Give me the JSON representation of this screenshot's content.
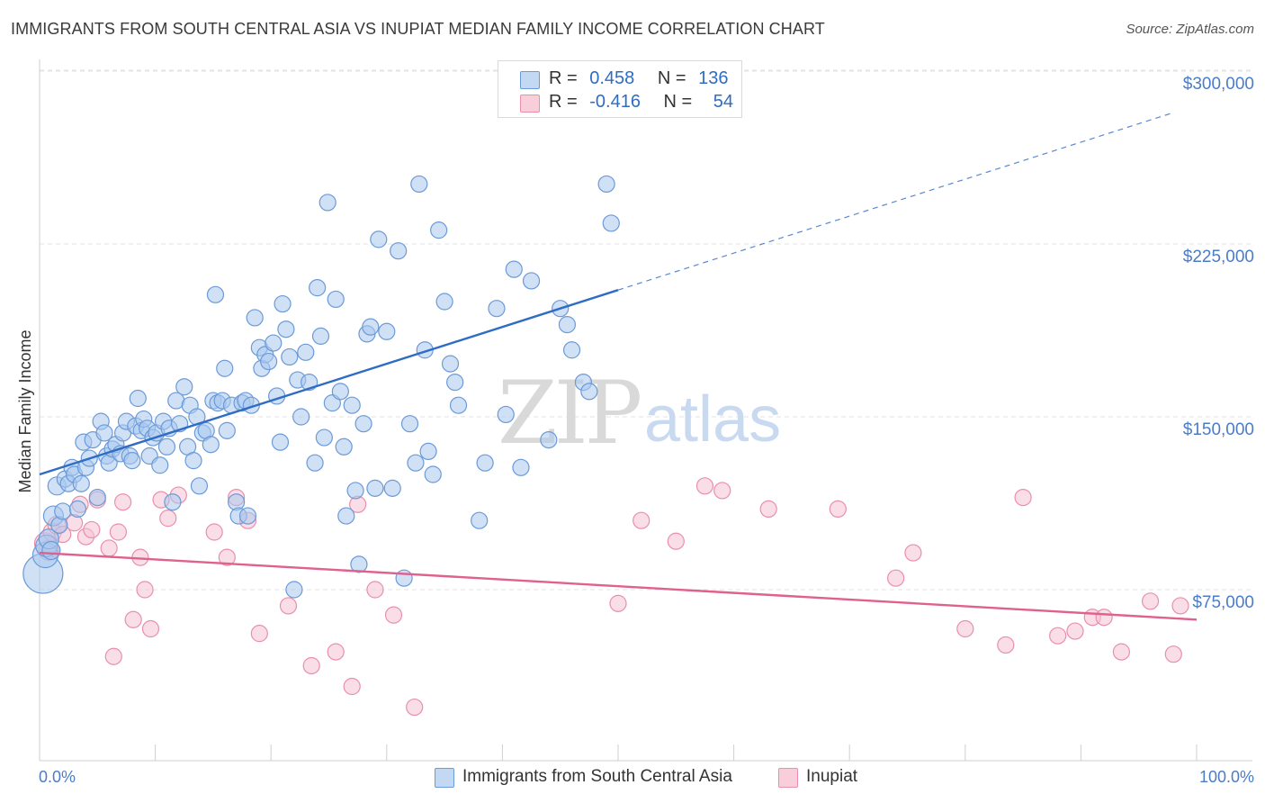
{
  "title": "IMMIGRANTS FROM SOUTH CENTRAL ASIA VS INUPIAT MEDIAN FAMILY INCOME CORRELATION CHART",
  "source": "Source: ZipAtlas.com",
  "watermark": {
    "zip": "ZIP",
    "atlas": "atlas"
  },
  "legend": {
    "series1": {
      "r_label": "R =",
      "r_value": "0.458",
      "n_label": "N =",
      "n_value": "136"
    },
    "series2": {
      "r_label": "R =",
      "r_value": "-0.416",
      "n_label": "N =",
      "n_value": "54"
    }
  },
  "bottom_legend": {
    "series1": "Immigrants from South Central Asia",
    "series2": "Inupiat"
  },
  "colors": {
    "blue_fill": "#a9c8ef",
    "blue_stroke": "#6b9ad8",
    "blue_line": "#2f6cc4",
    "pink_fill": "#f6c3d3",
    "pink_stroke": "#e98fac",
    "pink_line": "#e0608e",
    "grid": "#e3e3e3",
    "tick_label": "#4a7cc7"
  },
  "chart_data": {
    "type": "scatter",
    "ylabel": "Median Family Income",
    "xlabel": "",
    "x_tick_labels": {
      "min": "0.0%",
      "max": "100.0%"
    },
    "xlim": [
      0,
      100
    ],
    "ylim": [
      8000,
      315000
    ],
    "y_ticks": [
      {
        "value": 75000,
        "label": "$75,000"
      },
      {
        "value": 150000,
        "label": "$150,000"
      },
      {
        "value": 225000,
        "label": "$225,000"
      },
      {
        "value": 300000,
        "label": "$300,000"
      }
    ],
    "grid": "horizontal dashed",
    "legend_position": "top-center",
    "series": [
      {
        "name": "Immigrants from South Central Asia",
        "color": "blue",
        "trend": {
          "x0": 0,
          "y0": 125000,
          "x1": 50,
          "y1": 205000,
          "dash_to_x": 98,
          "dash_to_y": 282000
        },
        "points": [
          [
            0.3,
            82000,
            22
          ],
          [
            0.5,
            90000,
            14
          ],
          [
            0.6,
            94000,
            12
          ],
          [
            0.8,
            97000,
            11
          ],
          [
            1.0,
            92000,
            10
          ],
          [
            1.2,
            107000,
            11
          ],
          [
            1.5,
            120000,
            10
          ],
          [
            1.7,
            103000,
            9
          ],
          [
            2.0,
            109000,
            9
          ],
          [
            2.2,
            123000,
            9
          ],
          [
            2.5,
            121000,
            9
          ],
          [
            2.8,
            128000,
            9
          ],
          [
            3.0,
            125000,
            9
          ],
          [
            3.3,
            110000,
            9
          ],
          [
            3.6,
            121000,
            9
          ],
          [
            3.8,
            139000,
            9
          ],
          [
            4.0,
            128000,
            9
          ],
          [
            4.3,
            132000,
            9
          ],
          [
            4.6,
            140000,
            9
          ],
          [
            5.0,
            115000,
            9
          ],
          [
            5.3,
            148000,
            9
          ],
          [
            5.6,
            143000,
            9
          ],
          [
            5.8,
            133000,
            9
          ],
          [
            6.0,
            130000,
            9
          ],
          [
            6.3,
            136000,
            9
          ],
          [
            6.6,
            138000,
            9
          ],
          [
            7.0,
            134000,
            9
          ],
          [
            7.2,
            143000,
            9
          ],
          [
            7.5,
            148000,
            9
          ],
          [
            7.8,
            133000,
            9
          ],
          [
            8.0,
            131000,
            9
          ],
          [
            8.3,
            146000,
            9
          ],
          [
            8.5,
            158000,
            9
          ],
          [
            8.8,
            144000,
            9
          ],
          [
            9.0,
            149000,
            9
          ],
          [
            9.3,
            145000,
            9
          ],
          [
            9.5,
            133000,
            9
          ],
          [
            9.8,
            141000,
            9
          ],
          [
            10.1,
            143000,
            9
          ],
          [
            10.4,
            129000,
            9
          ],
          [
            10.7,
            148000,
            9
          ],
          [
            11.0,
            137000,
            9
          ],
          [
            11.2,
            145000,
            9
          ],
          [
            11.5,
            113000,
            9
          ],
          [
            11.8,
            157000,
            9
          ],
          [
            12.1,
            147000,
            9
          ],
          [
            12.5,
            163000,
            9
          ],
          [
            12.8,
            137000,
            9
          ],
          [
            13.0,
            155000,
            9
          ],
          [
            13.3,
            131000,
            9
          ],
          [
            13.6,
            150000,
            9
          ],
          [
            13.8,
            120000,
            9
          ],
          [
            14.1,
            143000,
            9
          ],
          [
            14.4,
            144000,
            9
          ],
          [
            14.8,
            138000,
            9
          ],
          [
            15.0,
            157000,
            9
          ],
          [
            15.2,
            203000,
            9
          ],
          [
            15.4,
            156000,
            9
          ],
          [
            15.8,
            157000,
            9
          ],
          [
            16.0,
            171000,
            9
          ],
          [
            16.2,
            144000,
            9
          ],
          [
            16.6,
            155000,
            9
          ],
          [
            17.0,
            113000,
            9
          ],
          [
            17.2,
            107000,
            9
          ],
          [
            17.5,
            156000,
            9
          ],
          [
            17.8,
            157000,
            9
          ],
          [
            18.0,
            107000,
            9
          ],
          [
            18.3,
            155000,
            9
          ],
          [
            18.6,
            193000,
            9
          ],
          [
            19.0,
            180000,
            9
          ],
          [
            19.2,
            171000,
            9
          ],
          [
            19.5,
            177000,
            9
          ],
          [
            19.8,
            174000,
            9
          ],
          [
            20.2,
            182000,
            9
          ],
          [
            20.5,
            159000,
            9
          ],
          [
            20.8,
            139000,
            9
          ],
          [
            21.0,
            199000,
            9
          ],
          [
            21.3,
            188000,
            9
          ],
          [
            21.6,
            176000,
            9
          ],
          [
            22.0,
            75000,
            9
          ],
          [
            22.3,
            166000,
            9
          ],
          [
            22.6,
            150000,
            9
          ],
          [
            23.0,
            178000,
            9
          ],
          [
            23.3,
            165000,
            9
          ],
          [
            23.8,
            130000,
            9
          ],
          [
            24.0,
            206000,
            9
          ],
          [
            24.3,
            185000,
            9
          ],
          [
            24.6,
            141000,
            9
          ],
          [
            24.9,
            243000,
            9
          ],
          [
            25.3,
            156000,
            9
          ],
          [
            25.6,
            201000,
            9
          ],
          [
            26.0,
            161000,
            9
          ],
          [
            26.3,
            137000,
            9
          ],
          [
            26.5,
            107000,
            9
          ],
          [
            27.0,
            155000,
            9
          ],
          [
            27.3,
            118000,
            9
          ],
          [
            27.6,
            86000,
            9
          ],
          [
            28.0,
            147000,
            9
          ],
          [
            28.3,
            186000,
            9
          ],
          [
            28.6,
            189000,
            9
          ],
          [
            29.0,
            119000,
            9
          ],
          [
            29.3,
            227000,
            9
          ],
          [
            30.0,
            187000,
            9
          ],
          [
            30.5,
            119000,
            9
          ],
          [
            31.0,
            222000,
            9
          ],
          [
            31.5,
            80000,
            9
          ],
          [
            32.0,
            147000,
            9
          ],
          [
            32.5,
            130000,
            9
          ],
          [
            32.8,
            251000,
            9
          ],
          [
            33.3,
            179000,
            9
          ],
          [
            33.6,
            135000,
            9
          ],
          [
            34.0,
            125000,
            9
          ],
          [
            34.5,
            231000,
            9
          ],
          [
            35.0,
            200000,
            9
          ],
          [
            35.5,
            173000,
            9
          ],
          [
            35.9,
            165000,
            9
          ],
          [
            36.2,
            155000,
            9
          ],
          [
            38.0,
            105000,
            9
          ],
          [
            38.5,
            130000,
            9
          ],
          [
            39.5,
            197000,
            9
          ],
          [
            40.3,
            151000,
            9
          ],
          [
            41.0,
            214000,
            9
          ],
          [
            41.6,
            128000,
            9
          ],
          [
            42.5,
            209000,
            9
          ],
          [
            44.0,
            140000,
            9
          ],
          [
            45.0,
            197000,
            9
          ],
          [
            45.6,
            190000,
            9
          ],
          [
            46.0,
            179000,
            9
          ],
          [
            47.0,
            165000,
            9
          ],
          [
            47.5,
            161000,
            9
          ],
          [
            49.0,
            251000,
            9
          ],
          [
            49.4,
            234000,
            9
          ]
        ]
      },
      {
        "name": "Inupiat",
        "color": "pink",
        "trend": {
          "x0": 0,
          "y0": 91000,
          "x1": 100,
          "y1": 62000
        },
        "points": [
          [
            0.5,
            95000,
            12
          ],
          [
            0.8,
            92000,
            11
          ],
          [
            1.1,
            100000,
            10
          ],
          [
            1.5,
            103000,
            10
          ],
          [
            2.0,
            99000,
            9
          ],
          [
            3.0,
            104000,
            9
          ],
          [
            3.5,
            112000,
            9
          ],
          [
            4.0,
            98000,
            9
          ],
          [
            4.5,
            101000,
            9
          ],
          [
            5.0,
            114000,
            9
          ],
          [
            6.0,
            93000,
            9
          ],
          [
            6.4,
            46000,
            9
          ],
          [
            6.8,
            100000,
            9
          ],
          [
            7.2,
            113000,
            9
          ],
          [
            8.1,
            62000,
            9
          ],
          [
            8.7,
            89000,
            9
          ],
          [
            9.1,
            75000,
            9
          ],
          [
            9.6,
            58000,
            9
          ],
          [
            10.5,
            114000,
            9
          ],
          [
            11.1,
            106000,
            9
          ],
          [
            12.0,
            116000,
            9
          ],
          [
            15.1,
            100000,
            9
          ],
          [
            16.2,
            89000,
            9
          ],
          [
            17.0,
            115000,
            9
          ],
          [
            18.0,
            105000,
            9
          ],
          [
            19.0,
            56000,
            9
          ],
          [
            21.5,
            68000,
            9
          ],
          [
            23.5,
            42000,
            9
          ],
          [
            25.6,
            48000,
            9
          ],
          [
            27.0,
            33000,
            9
          ],
          [
            27.5,
            112000,
            9
          ],
          [
            29.0,
            75000,
            9
          ],
          [
            30.6,
            64000,
            9
          ],
          [
            32.4,
            24000,
            9
          ],
          [
            50.0,
            69000,
            9
          ],
          [
            52.0,
            105000,
            9
          ],
          [
            55.0,
            96000,
            9
          ],
          [
            57.5,
            120000,
            9
          ],
          [
            59.0,
            118000,
            9
          ],
          [
            63.0,
            110000,
            9
          ],
          [
            69.0,
            110000,
            9
          ],
          [
            74.0,
            80000,
            9
          ],
          [
            75.5,
            91000,
            9
          ],
          [
            80.0,
            58000,
            9
          ],
          [
            83.5,
            51000,
            9
          ],
          [
            85.0,
            115000,
            9
          ],
          [
            88.0,
            55000,
            9
          ],
          [
            89.5,
            57000,
            9
          ],
          [
            91.0,
            63000,
            9
          ],
          [
            92.0,
            63000,
            9
          ],
          [
            93.5,
            48000,
            9
          ],
          [
            96.0,
            70000,
            9
          ],
          [
            98.0,
            47000,
            9
          ],
          [
            98.6,
            68000,
            9
          ]
        ]
      }
    ]
  }
}
